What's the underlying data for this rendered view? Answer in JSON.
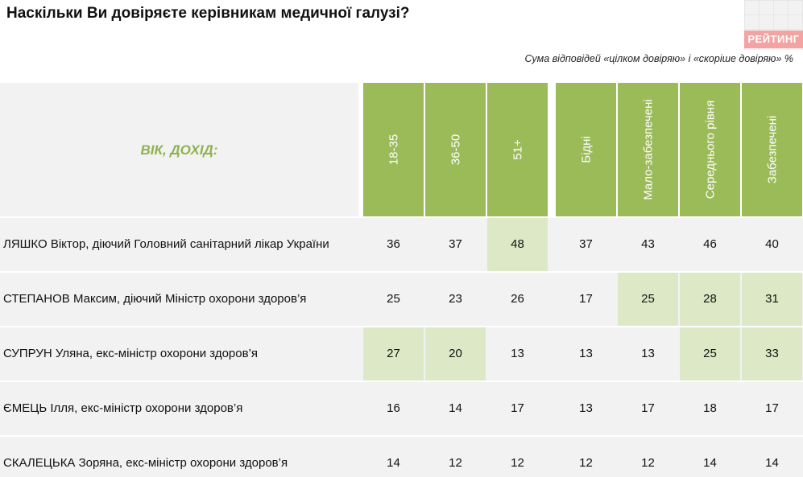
{
  "header": {
    "title": "Наскільки Ви довіряєте керівникам медичної галузі?",
    "subtitle": "Сума відповідей «цілком довіряю» і «скоріше довіряю» %",
    "logo_text": "РЕЙТИНГ"
  },
  "table": {
    "label_header": "ВІК, ДОХІД:",
    "columns": [
      "18-35",
      "36-50",
      "51+",
      "Бідні",
      "Мало-забезпечені",
      "Середнього рівня",
      "Забезпечені"
    ],
    "rows": [
      {
        "label": "ЛЯШКО Віктор, діючий Головний санітарний лікар України",
        "values": [
          "36",
          "37",
          "48",
          "37",
          "43",
          "46",
          "40"
        ],
        "highlight": [
          false,
          false,
          true,
          false,
          false,
          false,
          false
        ]
      },
      {
        "label": "СТЕПАНОВ Максим, діючий Міністр охорони здоров’я",
        "values": [
          "25",
          "23",
          "26",
          "17",
          "25",
          "28",
          "31"
        ],
        "highlight": [
          false,
          false,
          false,
          false,
          true,
          true,
          true
        ]
      },
      {
        "label": "СУПРУН Уляна, екс-міністр охорони здоров’я",
        "values": [
          "27",
          "20",
          "13",
          "13",
          "13",
          "25",
          "33"
        ],
        "highlight": [
          true,
          true,
          false,
          false,
          false,
          true,
          true
        ]
      },
      {
        "label": "ЄМЕЦЬ Ілля, екс-міністр охорони здоров’я",
        "values": [
          "16",
          "14",
          "17",
          "13",
          "17",
          "18",
          "17"
        ],
        "highlight": [
          false,
          false,
          false,
          false,
          false,
          false,
          false
        ]
      },
      {
        "label": "СКАЛЕЦЬКА Зоряна, екс-міністр охорони здоров’я",
        "values": [
          "14",
          "12",
          "12",
          "12",
          "12",
          "14",
          "14"
        ],
        "highlight": [
          false,
          false,
          false,
          false,
          false,
          false,
          false
        ]
      }
    ]
  },
  "colors": {
    "header_green": "#9bbb59",
    "highlight": "#dde9c6",
    "cell_bg": "#f2f2f2",
    "label_green": "#8fb14f"
  },
  "chart_data": {
    "type": "table",
    "title": "Наскільки Ви довіряєте керівникам медичної галузі?",
    "subtitle": "Сума відповідей «цілком довіряю» і «скоріше довіряю» %",
    "categories": [
      "18-35",
      "36-50",
      "51+",
      "Бідні",
      "Мало-забезпечені",
      "Середнього рівня",
      "Забезпечені"
    ],
    "series": [
      {
        "name": "ЛЯШКО Віктор, діючий Головний санітарний лікар України",
        "values": [
          36,
          37,
          48,
          37,
          43,
          46,
          40
        ]
      },
      {
        "name": "СТЕПАНОВ Максим, діючий Міністр охорони здоров’я",
        "values": [
          25,
          23,
          26,
          17,
          25,
          28,
          31
        ]
      },
      {
        "name": "СУПРУН Уляна, екс-міністр охорони здоров’я",
        "values": [
          27,
          20,
          13,
          13,
          13,
          25,
          33
        ]
      },
      {
        "name": "ЄМЕЦЬ Ілля, екс-міністр охорони здоров’я",
        "values": [
          16,
          14,
          17,
          13,
          17,
          18,
          17
        ]
      },
      {
        "name": "СКАЛЕЦЬКА Зоряна, екс-міністр охорони здоров’я",
        "values": [
          14,
          12,
          12,
          12,
          12,
          14,
          14
        ]
      }
    ]
  }
}
